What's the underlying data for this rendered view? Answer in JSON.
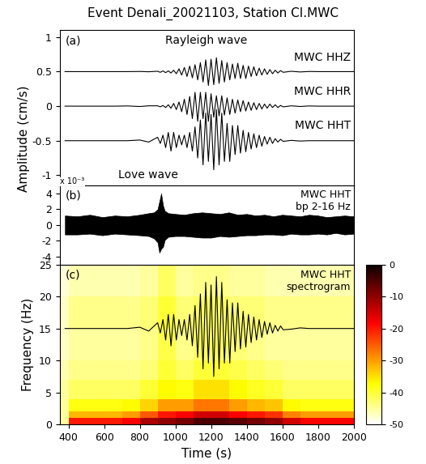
{
  "chart_data": [
    {
      "type": "line",
      "title": "Event Denali_20021103, Station CI.MWC",
      "ylabel": "Amplitude (cm/s)",
      "annotations": [
        "(a)",
        "Rayleigh wave",
        "Love wave"
      ],
      "tick_labels": "y",
      "xlim": [
        350,
        2000
      ],
      "xticks": [
        400,
        600,
        800,
        1000,
        1200,
        1400,
        1600,
        1800,
        2000
      ],
      "ylim": [
        -1.15,
        1.1
      ],
      "yticks": [
        -1,
        -0.5,
        0,
        0.5,
        1
      ],
      "x": [
        380,
        450,
        520,
        590,
        660,
        730,
        800,
        850,
        900,
        915,
        930,
        945,
        960,
        975,
        990,
        1005,
        1020,
        1035,
        1050,
        1065,
        1080,
        1095,
        1110,
        1125,
        1140,
        1155,
        1170,
        1185,
        1200,
        1215,
        1230,
        1245,
        1260,
        1275,
        1290,
        1305,
        1320,
        1335,
        1350,
        1365,
        1380,
        1395,
        1410,
        1425,
        1440,
        1455,
        1470,
        1485,
        1500,
        1515,
        1530,
        1545,
        1560,
        1575,
        1590,
        1605,
        1650,
        1700,
        1750,
        1800,
        1850,
        1900,
        1950,
        2000
      ],
      "series": [
        {
          "name": "MWC HHZ",
          "color": "#000000",
          "values": [
            0.5,
            0.5,
            0.5,
            0.5,
            0.5,
            0.5,
            0.502,
            0.498,
            0.505,
            0.49,
            0.51,
            0.485,
            0.51,
            0.48,
            0.52,
            0.47,
            0.54,
            0.45,
            0.56,
            0.43,
            0.58,
            0.41,
            0.6,
            0.38,
            0.63,
            0.35,
            0.67,
            0.3,
            0.68,
            0.31,
            0.7,
            0.33,
            0.66,
            0.35,
            0.63,
            0.38,
            0.61,
            0.4,
            0.62,
            0.4,
            0.59,
            0.4,
            0.58,
            0.43,
            0.57,
            0.44,
            0.55,
            0.45,
            0.54,
            0.46,
            0.53,
            0.47,
            0.52,
            0.48,
            0.515,
            0.49,
            0.505,
            0.495,
            0.502,
            0.5,
            0.5,
            0.5,
            0.5,
            0.5
          ]
        },
        {
          "name": "MWC HHR",
          "color": "#000000",
          "values": [
            0,
            0,
            0,
            0,
            0,
            0.003,
            -0.005,
            0.005,
            0.005,
            -0.01,
            0.01,
            -0.02,
            0.02,
            -0.03,
            0.04,
            -0.05,
            0.06,
            -0.08,
            0.1,
            -0.12,
            0.14,
            -0.18,
            0.2,
            -0.22,
            0.2,
            -0.18,
            0.2,
            -0.22,
            0.18,
            -0.16,
            0.15,
            -0.14,
            0.15,
            -0.13,
            0.12,
            -0.12,
            0.1,
            -0.1,
            0.09,
            -0.08,
            0.08,
            -0.07,
            0.06,
            -0.06,
            0.05,
            -0.05,
            0.04,
            -0.04,
            0.03,
            -0.03,
            0.03,
            -0.02,
            0.02,
            -0.02,
            0.01,
            -0.01,
            0.005,
            -0.005,
            0.003,
            0,
            0,
            0,
            0,
            0
          ]
        },
        {
          "name": "MWC HHT",
          "color": "#000000",
          "values": [
            -0.5,
            -0.5,
            -0.5,
            -0.5,
            -0.5,
            -0.5,
            -0.49,
            -0.52,
            -0.45,
            -0.54,
            -0.42,
            -0.6,
            -0.38,
            -0.65,
            -0.38,
            -0.6,
            -0.42,
            -0.56,
            -0.42,
            -0.6,
            -0.38,
            -0.65,
            -0.3,
            -0.75,
            -0.2,
            -0.85,
            -0.1,
            -0.8,
            -0.12,
            -0.92,
            -0.05,
            -0.85,
            -0.1,
            -0.8,
            -0.25,
            -0.8,
            -0.28,
            -0.7,
            -0.28,
            -0.68,
            -0.35,
            -0.66,
            -0.38,
            -0.62,
            -0.4,
            -0.6,
            -0.42,
            -0.58,
            -0.44,
            -0.55,
            -0.45,
            -0.54,
            -0.47,
            -0.52,
            -0.48,
            -0.51,
            -0.495,
            -0.505,
            -0.5,
            -0.5,
            -0.5,
            -0.5,
            -0.5,
            -0.5
          ]
        }
      ]
    },
    {
      "type": "area",
      "annotations": [
        "(b)",
        "MWC HHT\nbp 2-16 Hz",
        "x 10⁻³"
      ],
      "tick_labels": "y",
      "color": "#000000",
      "xlim": [
        350,
        2000
      ],
      "xticks": [
        400,
        600,
        800,
        1000,
        1200,
        1400,
        1600,
        1800,
        2000
      ],
      "ylim": [
        -5,
        5
      ],
      "yticks": [
        -4,
        -2,
        0,
        2,
        4
      ],
      "x": [
        380,
        450,
        520,
        590,
        660,
        730,
        800,
        850,
        880,
        900,
        910,
        920,
        930,
        940,
        960,
        1000,
        1050,
        1100,
        1150,
        1200,
        1250,
        1300,
        1350,
        1400,
        1450,
        1500,
        1550,
        1600,
        1650,
        1700,
        1750,
        1800,
        1850,
        1900,
        1950,
        2000
      ],
      "upper": [
        1.2,
        1.1,
        1.3,
        1.0,
        1.2,
        1.1,
        1.3,
        1.5,
        1.6,
        2.0,
        3.0,
        4.0,
        2.5,
        1.8,
        1.5,
        1.4,
        1.3,
        1.5,
        1.6,
        1.5,
        1.4,
        1.6,
        1.3,
        1.4,
        1.2,
        1.3,
        1.1,
        1.3,
        1.2,
        1.1,
        1.3,
        1.2,
        1.0,
        1.1,
        1.2,
        1.1
      ],
      "lower": [
        -1.2,
        -1.2,
        -1.1,
        -1.3,
        -1.1,
        -1.2,
        -1.3,
        -1.4,
        -1.7,
        -2.2,
        -3.5,
        -3.0,
        -2.8,
        -1.9,
        -1.5,
        -1.4,
        -1.4,
        -1.5,
        -1.6,
        -1.6,
        -1.4,
        -1.5,
        -1.4,
        -1.3,
        -1.3,
        -1.2,
        -1.2,
        -1.3,
        -1.1,
        -1.2,
        -1.2,
        -1.1,
        -1.2,
        -1.0,
        -1.2,
        -1.1
      ]
    },
    {
      "type": "heatmap",
      "xlabel": "Time (s)",
      "ylabel": "Frequency (Hz)",
      "annotations": [
        "(c)",
        "MWC HHT\nspectrogram"
      ],
      "xlim": [
        350,
        2000
      ],
      "xticks": [
        400,
        600,
        800,
        1000,
        1200,
        1400,
        1600,
        1800,
        2000
      ],
      "ylim": [
        0,
        25
      ],
      "yticks": [
        0,
        5,
        10,
        15,
        20,
        25
      ],
      "time_edges": [
        350,
        400,
        500,
        600,
        700,
        800,
        900,
        1000,
        1100,
        1200,
        1300,
        1400,
        1500,
        1600,
        1700,
        1800,
        1900,
        2000
      ],
      "freq_edges": [
        0,
        1,
        2,
        4,
        7,
        10,
        15,
        20,
        25
      ],
      "cells": [
        [
          -45,
          -20,
          -20,
          -20,
          -18,
          -12,
          -10,
          -8,
          -5,
          -5,
          -6,
          -8,
          -10,
          -15,
          -18,
          -18,
          -18
        ],
        [
          -45,
          -32,
          -32,
          -32,
          -30,
          -25,
          -20,
          -18,
          -15,
          -15,
          -18,
          -20,
          -22,
          -28,
          -30,
          -30,
          -30
        ],
        [
          -45,
          -38,
          -38,
          -38,
          -37,
          -34,
          -30,
          -30,
          -27,
          -27,
          -30,
          -32,
          -33,
          -37,
          -38,
          -38,
          -38
        ],
        [
          -45,
          -42,
          -42,
          -42,
          -42,
          -40,
          -37,
          -38,
          -35,
          -35,
          -37,
          -39,
          -40,
          -42,
          -42,
          -42,
          -42
        ],
        [
          -46,
          -44,
          -44,
          -44,
          -44,
          -43,
          -40,
          -42,
          -40,
          -40,
          -41,
          -42,
          -43,
          -44,
          -44,
          -44,
          -44
        ],
        [
          -47,
          -45,
          -45,
          -45,
          -45,
          -44,
          -41,
          -44,
          -42,
          -42,
          -43,
          -44,
          -45,
          -45,
          -45,
          -45,
          -45
        ],
        [
          -47,
          -44,
          -44,
          -44,
          -44,
          -43,
          -40,
          -43,
          -42,
          -42,
          -43,
          -43,
          -44,
          -44,
          -44,
          -44,
          -44
        ],
        [
          -48,
          -46,
          -46,
          -46,
          -46,
          -45,
          -42,
          -45,
          -44,
          -44,
          -45,
          -45,
          -46,
          -46,
          -46,
          -46,
          -46
        ]
      ],
      "colorbar_range": [
        -50,
        0
      ],
      "colorbar_ticks": [
        0,
        -10,
        -20,
        -30,
        -40,
        -50
      ],
      "line": {
        "color": "#000000",
        "x": [
          380,
          450,
          520,
          590,
          660,
          730,
          800,
          850,
          900,
          915,
          930,
          945,
          960,
          975,
          990,
          1005,
          1020,
          1035,
          1050,
          1065,
          1080,
          1095,
          1110,
          1125,
          1140,
          1155,
          1170,
          1185,
          1200,
          1215,
          1230,
          1245,
          1260,
          1275,
          1290,
          1305,
          1320,
          1335,
          1350,
          1365,
          1380,
          1395,
          1410,
          1425,
          1440,
          1455,
          1470,
          1485,
          1500,
          1515,
          1530,
          1545,
          1560,
          1575,
          1590,
          1605,
          1650,
          1700,
          1750,
          1800,
          1850,
          1900,
          1950,
          2000
        ],
        "values": [
          15,
          15,
          15,
          15,
          15,
          15,
          15.2,
          14.6,
          15.9,
          14.3,
          16.4,
          13.2,
          17.2,
          12.3,
          17.2,
          13.2,
          16.4,
          13.9,
          16.4,
          13.2,
          17.2,
          12.3,
          18.6,
          10.5,
          20.4,
          8.7,
          22.2,
          9.6,
          21.8,
          7.5,
          23.1,
          8.7,
          22.2,
          9.6,
          19.5,
          9.6,
          19,
          11.4,
          19,
          11.8,
          17.7,
          12.1,
          17.2,
          12.8,
          16.8,
          13.2,
          16.4,
          13.6,
          16.1,
          14.1,
          15.9,
          14.3,
          15.5,
          14.6,
          15.4,
          14.8,
          14.9,
          15.1,
          15,
          15,
          15,
          15,
          15,
          15
        ]
      }
    }
  ]
}
